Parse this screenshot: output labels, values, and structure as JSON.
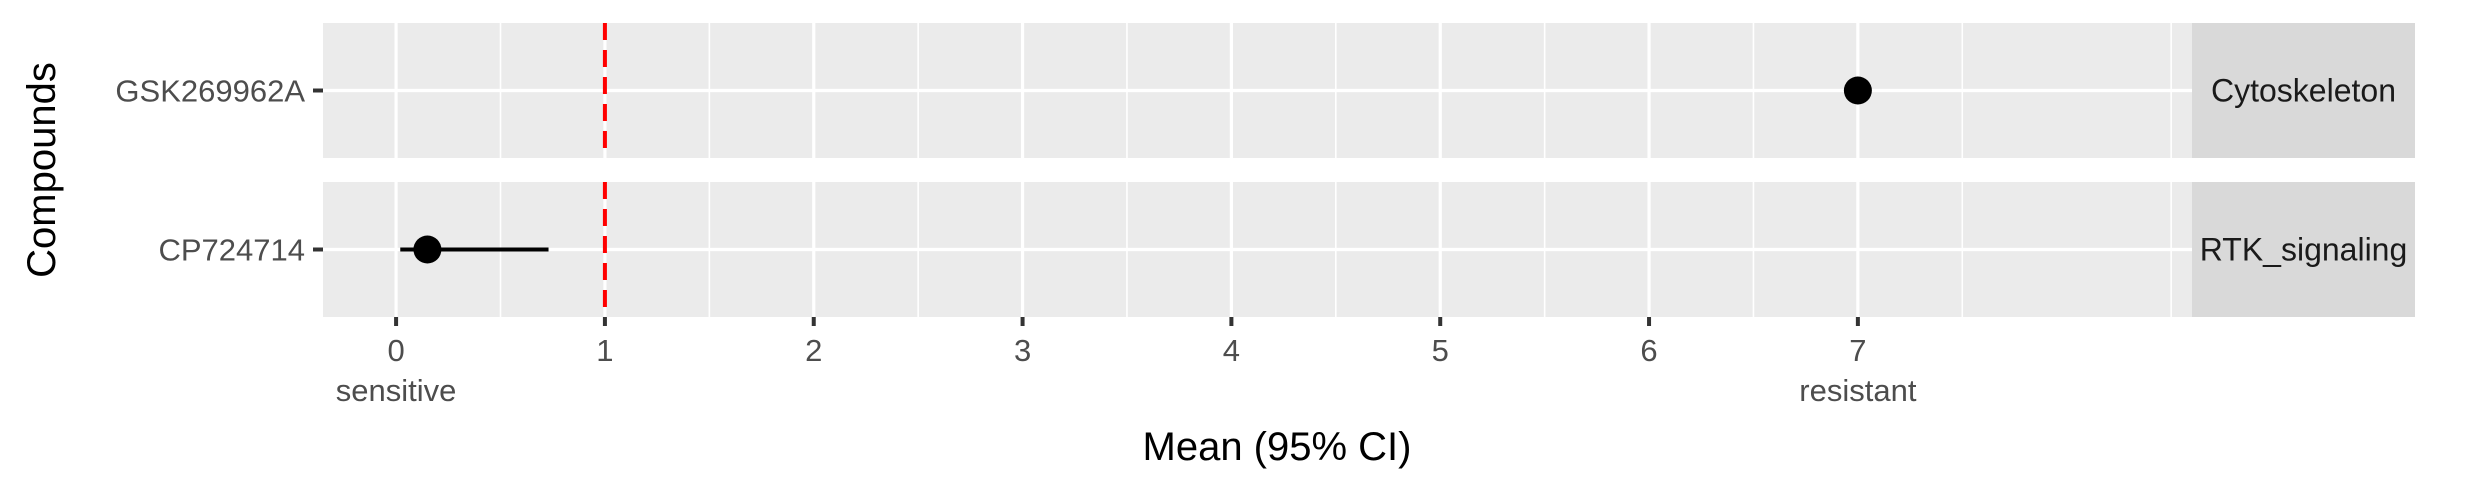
{
  "chart_data": {
    "type": "scatter",
    "subtype": "dot-and-interval (faceted forest plot)",
    "xlabel": "Mean (95% CI)",
    "ylabel": "Compounds",
    "xlim": [
      -0.35,
      8.6
    ],
    "x_ticks": [
      0,
      1,
      2,
      3,
      4,
      5,
      6,
      7
    ],
    "x_tick_labels": [
      "0",
      "1",
      "2",
      "3",
      "4",
      "5",
      "6",
      "7"
    ],
    "x_annotations": [
      {
        "x": 0,
        "text": "sensitive"
      },
      {
        "x": 7,
        "text": "resistant"
      }
    ],
    "reference_line": {
      "x": 1,
      "style": "dashed",
      "color": "#ff0000"
    },
    "grid": true,
    "point_color": "#000000",
    "panels": [
      {
        "facet": "Cytoskeleton",
        "compound": "GSK269962A",
        "mean": 7.0,
        "ci_low": 7.0,
        "ci_high": 7.0
      },
      {
        "facet": "RTK_signaling",
        "compound": "CP724714",
        "mean": 0.15,
        "ci_low": 0.02,
        "ci_high": 0.73
      }
    ]
  }
}
